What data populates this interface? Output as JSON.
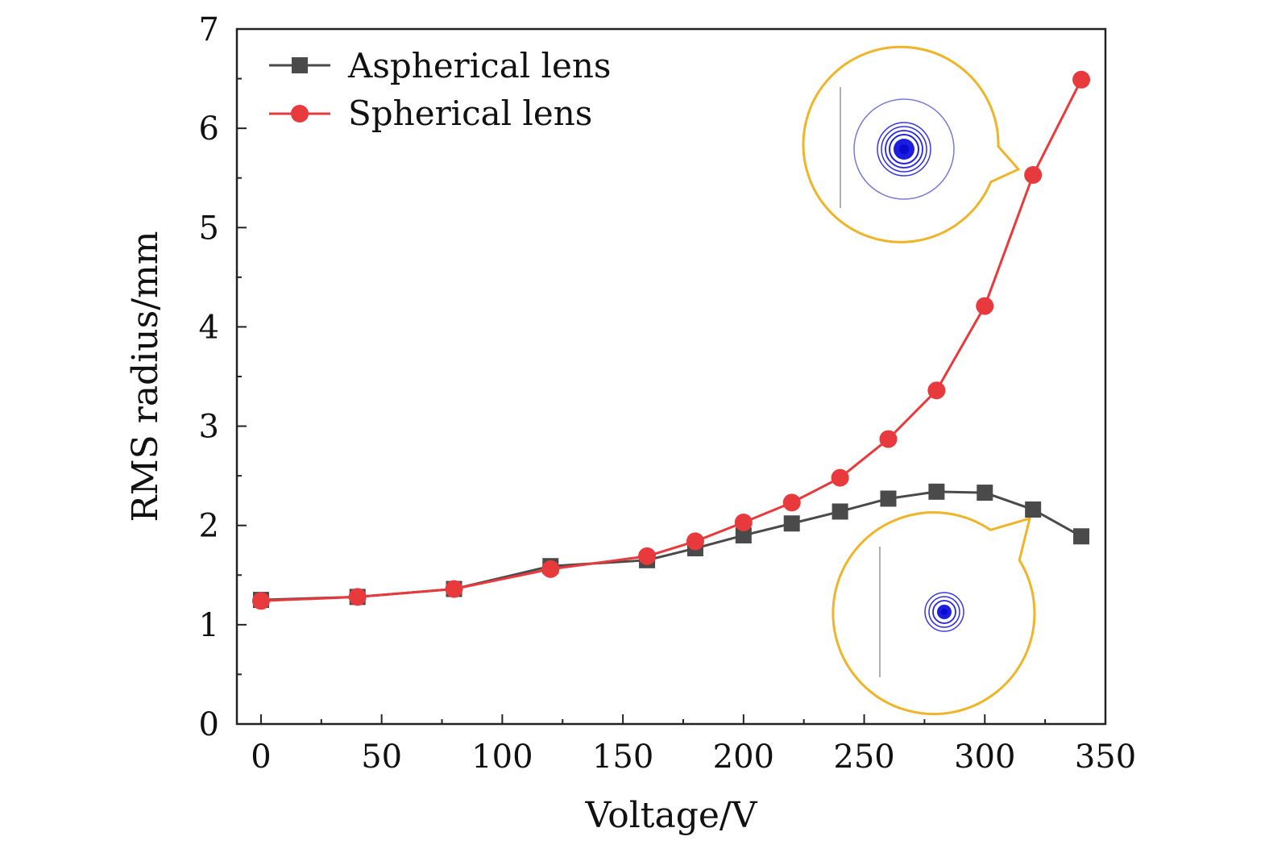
{
  "chart_data": {
    "type": "line",
    "xlabel": "Voltage/V",
    "ylabel": "RMS radius/mm",
    "xlim": [
      -10,
      350
    ],
    "ylim": [
      0,
      7
    ],
    "x_ticks": [
      "0",
      "50",
      "100",
      "150",
      "200",
      "250",
      "300",
      "350"
    ],
    "y_ticks": [
      "0",
      "1",
      "2",
      "3",
      "4",
      "5",
      "6",
      "7"
    ],
    "x_tick_values": [
      0,
      50,
      100,
      150,
      200,
      250,
      300,
      350
    ],
    "y_tick_values": [
      0,
      1,
      2,
      3,
      4,
      5,
      6,
      7
    ],
    "legend_position": "top-left",
    "grid": false,
    "series": [
      {
        "name": "Aspherical lens",
        "color": "#4a4a4a",
        "marker": "square",
        "x": [
          0,
          40,
          80,
          120,
          160,
          180,
          200,
          220,
          240,
          260,
          280,
          300,
          320,
          340
        ],
        "y": [
          1.25,
          1.28,
          1.36,
          1.59,
          1.65,
          1.77,
          1.9,
          2.02,
          2.14,
          2.27,
          2.34,
          2.33,
          2.16,
          1.89
        ]
      },
      {
        "name": "Spherical lens",
        "color": "#e8393c",
        "marker": "circle",
        "x": [
          0,
          40,
          80,
          120,
          160,
          180,
          200,
          220,
          240,
          260,
          280,
          300,
          320,
          340
        ],
        "y": [
          1.24,
          1.28,
          1.36,
          1.56,
          1.69,
          1.84,
          2.03,
          2.23,
          2.48,
          2.87,
          3.36,
          4.21,
          5.53,
          6.49
        ]
      }
    ],
    "insets": [
      {
        "name": "spherical-spot-diagram",
        "border_color": "#f0b429",
        "spot_color": "#2222dd"
      },
      {
        "name": "aspherical-spot-diagram",
        "border_color": "#f0b429",
        "spot_color": "#2222dd"
      }
    ]
  }
}
